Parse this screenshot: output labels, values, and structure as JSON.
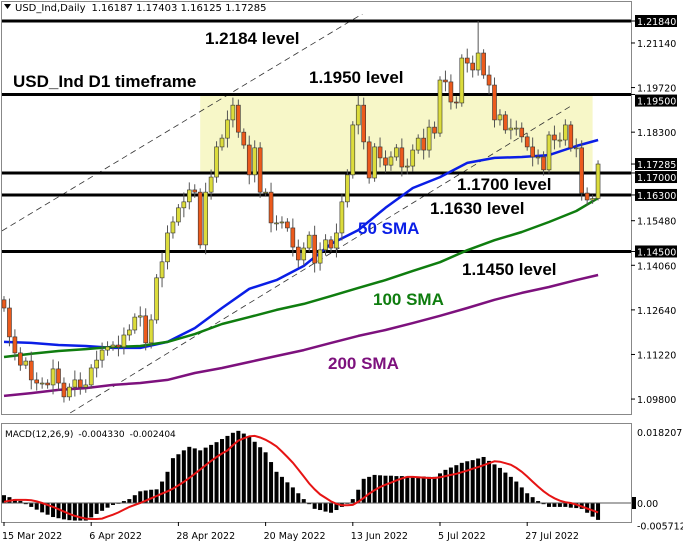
{
  "header": {
    "symbol_timeframe": "USD_Ind,Daily",
    "ohlc": "1.16187 1.17403 1.16125 1.17285",
    "dropdown_icon": "triangle-down-icon"
  },
  "annotations": {
    "level_2184": "1.2184 level",
    "timeframe": "USD_Ind D1 timeframe",
    "level_1950": "1.1950 level",
    "level_1700": "1.1700 level",
    "level_1630": "1.1630 level",
    "sma50": "50 SMA",
    "level_1450": "1.1450 level",
    "sma100": "100 SMA",
    "sma200": "200 SMA"
  },
  "chart_data": [
    {
      "type": "candlestick",
      "title": "USD_Ind,Daily",
      "last_bar_ohlc": [
        1.16187,
        1.17403,
        1.16125,
        1.17285
      ],
      "closes": [
        1.127,
        1.1178,
        1.1127,
        1.1088,
        1.1101,
        1.1041,
        1.1031,
        1.1031,
        1.1025,
        1.1076,
        1.1031,
        1.0987,
        1.1018,
        1.1041,
        1.1018,
        1.1025,
        1.1079,
        1.1104,
        1.1136,
        1.1146,
        1.1152,
        1.1146,
        1.1184,
        1.12,
        1.1241,
        1.1245,
        1.1159,
        1.1232,
        1.1366,
        1.1417,
        1.1509,
        1.1544,
        1.1589,
        1.1608,
        1.1646,
        1.1639,
        1.1471,
        1.1639,
        1.1687,
        1.1783,
        1.1811,
        1.1869,
        1.1916,
        1.183,
        1.1789,
        1.1694,
        1.178,
        1.1639,
        1.1639,
        1.1541,
        1.1541,
        1.1544,
        1.1525,
        1.1464,
        1.1423,
        1.1461,
        1.1502,
        1.1413,
        1.1455,
        1.1487,
        1.1461,
        1.1509,
        1.1608,
        1.1694,
        1.1853,
        1.1916,
        1.1799,
        1.1684,
        1.1783,
        1.1748,
        1.1725,
        1.1751,
        1.178,
        1.1719,
        1.1722,
        1.1773,
        1.1811,
        1.1773,
        1.1846,
        1.1827,
        1.1996,
        1.199,
        1.1926,
        1.1923,
        1.2066,
        1.205,
        1.2028,
        1.2082,
        1.2012,
        1.198,
        1.1869,
        1.1885,
        1.1837,
        1.1843,
        1.1843,
        1.1815,
        1.1783,
        1.1751,
        1.1751,
        1.171,
        1.1821,
        1.1805,
        1.1805,
        1.1853,
        1.178,
        1.178,
        1.1636,
        1.1614,
        1.16187,
        1.17285
      ],
      "first_open": 1.1296,
      "period_high": 1.2184,
      "period_high_bar": 87,
      "sma_sample_bars": [
        0,
        5,
        10,
        15,
        20,
        25,
        30,
        35,
        40,
        45,
        50,
        55,
        60,
        65,
        70,
        75,
        80,
        85,
        90,
        95,
        100,
        105,
        109
      ],
      "sma": [
        {
          "name": "50 SMA",
          "color": "#0a1ee6",
          "values": [
            1.1162,
            1.1159,
            1.1152,
            1.1149,
            1.1143,
            1.1143,
            1.1162,
            1.1206,
            1.127,
            1.1331,
            1.1359,
            1.1404,
            1.1474,
            1.1518,
            1.1589,
            1.1652,
            1.1687,
            1.1732,
            1.1748,
            1.1751,
            1.1757,
            1.1786,
            1.1805
          ]
        },
        {
          "name": "100 SMA",
          "color": "#0f7d0f",
          "values": [
            1.1114,
            1.1124,
            1.1133,
            1.1139,
            1.1146,
            1.1149,
            1.1162,
            1.1187,
            1.1219,
            1.1241,
            1.1264,
            1.1283,
            1.1308,
            1.1334,
            1.1359,
            1.1388,
            1.1416,
            1.1454,
            1.1486,
            1.1512,
            1.1544,
            1.1579,
            1.162
          ]
        },
        {
          "name": "200 SMA",
          "color": "#7d117d",
          "values": [
            1.099,
            1.0999,
            1.1009,
            1.1015,
            1.1025,
            1.1031,
            1.1041,
            1.1063,
            1.1079,
            1.1098,
            1.1117,
            1.1136,
            1.1159,
            1.1181,
            1.12,
            1.1222,
            1.1245,
            1.127,
            1.1296,
            1.1318,
            1.1337,
            1.1359,
            1.1375
          ]
        }
      ],
      "horizontal_levels": [
        1.2184,
        1.195,
        1.17,
        1.163,
        1.145
      ],
      "highlight_zone": {
        "from_bar": 36,
        "to_bar": 108,
        "low": 1.17,
        "high": 1.195,
        "color": "#f7f7c8"
      },
      "trendlines": [
        {
          "from": [
            -1,
            1.1509
          ],
          "to": [
            70,
            1.2251
          ],
          "style": "dashed"
        },
        {
          "from": [
            10,
            1.0913
          ],
          "to": [
            104,
            1.1913
          ],
          "style": "dashed"
        }
      ],
      "colors": {
        "bull": "#dcdc3c",
        "bear": "#ec5a1c",
        "outline": "#333333"
      },
      "y_ticks": [
        "1.21840",
        "1.21140",
        "1.19720",
        "1.19500",
        "1.18300",
        "1.17285",
        "1.17000",
        "1.16300",
        "1.15480",
        "1.14500",
        "1.14060",
        "1.12640",
        "1.11220",
        "1.09800"
      ],
      "y_ticks_highlighted": [
        "1.21840",
        "1.19500",
        "1.17285",
        "1.17000",
        "1.16300",
        "1.14500"
      ],
      "ylim": [
        1.095,
        1.231
      ],
      "grid": false
    },
    {
      "type": "bar+line",
      "title": "MACD(12,26,9) -0.004330 -0.002404",
      "macd_label": "MACD(12,26,9)",
      "macd_value": "-0.004330",
      "signal_value": "-0.002404",
      "histogram": [
        0.002,
        0.0015,
        0.001,
        0.0005,
        -0.0003,
        -0.001,
        -0.0017,
        -0.0024,
        -0.003,
        -0.0036,
        -0.0039,
        -0.0042,
        -0.0044,
        -0.0045,
        -0.0045,
        -0.0045,
        -0.0037,
        -0.0028,
        -0.002,
        -0.0012,
        -0.0005,
        0,
        0.0005,
        0.001,
        0.002,
        0.003,
        0.0032,
        0.0034,
        0.0035,
        0.0055,
        0.008,
        0.0115,
        0.0125,
        0.0135,
        0.0144,
        0.014,
        0.0135,
        0.0142,
        0.0149,
        0.0156,
        0.0164,
        0.0172,
        0.018,
        0.0185,
        0.0178,
        0.017,
        0.0157,
        0.0143,
        0.013,
        0.0105,
        0.008,
        0.0067,
        0.0053,
        0.004,
        0.0025,
        0.001,
        -0.0003,
        -0.0015,
        -0.0018,
        -0.0022,
        -0.0025,
        -0.0018,
        -0.001,
        0,
        0.001,
        0.0034,
        0.0062,
        0.0067,
        0.0072,
        0.0071,
        0.007,
        0.007,
        0.0069,
        0.0069,
        0.0068,
        0.0068,
        0.0068,
        0.0068,
        0.0067,
        0.0067,
        0.0076,
        0.0085,
        0.0091,
        0.0097,
        0.0103,
        0.0107,
        0.011,
        0.0114,
        0.0118,
        0.0108,
        0.0099,
        0.009,
        0.0078,
        0.0067,
        0.0055,
        0.004,
        0.0025,
        0.0015,
        0.0005,
        -0.0003,
        -0.001,
        -0.001,
        -0.001,
        -0.001,
        -0.0012,
        -0.0013,
        -0.0015,
        -0.0025,
        -0.0035,
        -0.00433
      ],
      "signal": [
        0.0003,
        0.0006,
        0.0008,
        0.0008,
        0.0008,
        0.0007,
        0.0004,
        0,
        -0.0005,
        -0.001,
        -0.0016,
        -0.0022,
        -0.0028,
        -0.0033,
        -0.0037,
        -0.004,
        -0.0041,
        -0.0041,
        -0.004,
        -0.0035,
        -0.003,
        -0.0024,
        -0.0017,
        -0.001,
        -0.0005,
        0,
        0.0006,
        0.0012,
        0.0018,
        0.0024,
        0.003,
        0.0037,
        0.0045,
        0.0054,
        0.0064,
        0.0075,
        0.0086,
        0.0097,
        0.0108,
        0.0118,
        0.0127,
        0.0135,
        0.0148,
        0.016,
        0.0166,
        0.0171,
        0.0172,
        0.0168,
        0.0162,
        0.0154,
        0.0145,
        0.0132,
        0.0118,
        0.0103,
        0.0086,
        0.0068,
        0.005,
        0.0035,
        0.0022,
        0.0013,
        0.0004,
        -0.0002,
        -0.0006,
        -0.0006,
        -0.0005,
        0.0003,
        0.0013,
        0.0024,
        0.0033,
        0.0041,
        0.0047,
        0.0052,
        0.0058,
        0.0063,
        0.0067,
        0.0067,
        0.0066,
        0.0065,
        0.0064,
        0.0064,
        0.0066,
        0.0069,
        0.0072,
        0.0075,
        0.0079,
        0.0083,
        0.0088,
        0.0092,
        0.0097,
        0.0102,
        0.0107,
        0.0106,
        0.0102,
        0.0098,
        0.009,
        0.008,
        0.0068,
        0.0055,
        0.0042,
        0.003,
        0.002,
        0.0012,
        0.0006,
        0.0002,
        0,
        -0.0004,
        -0.0009,
        -0.0014,
        -0.0019,
        -0.0024
      ],
      "colors": {
        "histogram": "#000000",
        "signal": "#e61414"
      },
      "y_ticks": [
        "0.018207",
        "0.00",
        "-0.005712"
      ],
      "y_tick_values": [
        0.018207,
        0,
        -0.005712
      ]
    }
  ],
  "x_axis": {
    "labels": [
      "15 Mar 2022",
      "6 Apr 2022",
      "28 Apr 2022",
      "20 May 2022",
      "13 Jun 2022",
      "5 Jul 2022",
      "27 Jul 2022"
    ],
    "label_bars": [
      0,
      16,
      32,
      48,
      64,
      80,
      96
    ]
  }
}
